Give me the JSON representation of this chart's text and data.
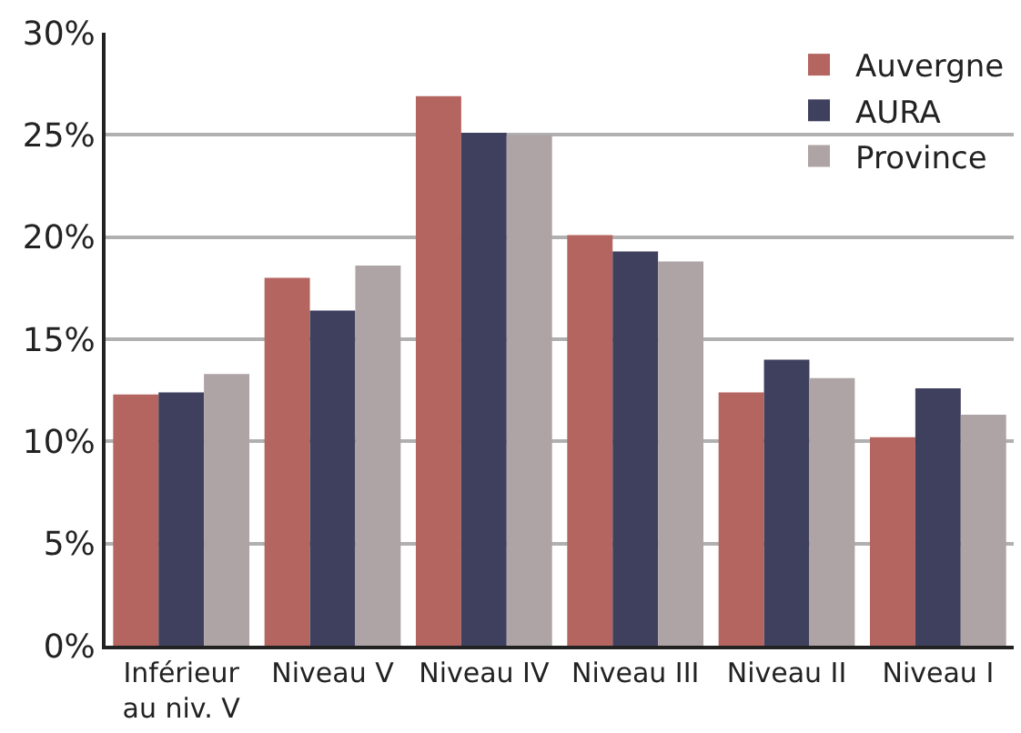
{
  "chart_data": {
    "type": "bar",
    "categories": [
      "Inférieur\nau niv. V",
      "Niveau V",
      "Niveau IV",
      "Niveau III",
      "Niveau II",
      "Niveau I"
    ],
    "series": [
      {
        "name": "Auvergne",
        "color": "#b56560",
        "values": [
          12.3,
          18.0,
          26.9,
          20.1,
          12.4,
          10.2
        ]
      },
      {
        "name": "AURA",
        "color": "#3f405e",
        "values": [
          12.4,
          16.4,
          25.1,
          19.3,
          14.0,
          12.6
        ]
      },
      {
        "name": "Province",
        "color": "#aea3a5",
        "values": [
          13.3,
          18.6,
          25.0,
          18.8,
          13.1,
          11.3
        ]
      }
    ],
    "ylim": [
      0,
      30
    ],
    "yticks": [
      {
        "value": 0,
        "label": "0%"
      },
      {
        "value": 5,
        "label": "5%"
      },
      {
        "value": 10,
        "label": "10%"
      },
      {
        "value": 15,
        "label": "15%"
      },
      {
        "value": 20,
        "label": "20%"
      },
      {
        "value": 25,
        "label": "25%"
      },
      {
        "value": 30,
        "label": "30%"
      }
    ],
    "grid": "y",
    "legend": "top right"
  }
}
